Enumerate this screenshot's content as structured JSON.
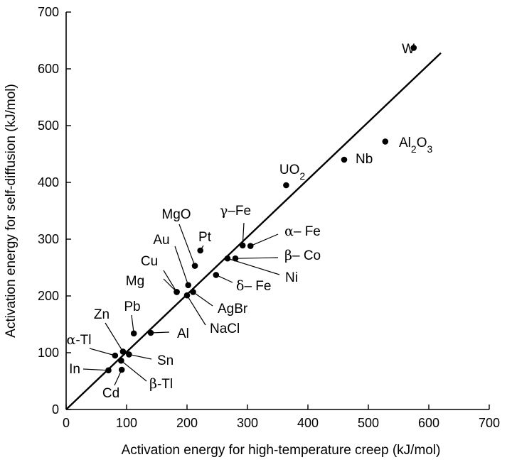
{
  "chart_data": {
    "type": "scatter",
    "title": "",
    "xlabel": "Activation energy for high-temperature creep (kJ/mol)",
    "ylabel": "Activation energy for self-diffusion (kJ/mol)",
    "xlim": [
      0,
      700
    ],
    "ylim": [
      0,
      700
    ],
    "xticks": [
      0,
      100,
      200,
      300,
      400,
      500,
      600,
      700
    ],
    "yticks": [
      0,
      100,
      200,
      300,
      400,
      500,
      600,
      700
    ],
    "grid": false,
    "fit_line": {
      "x": [
        0,
        620
      ],
      "y": [
        0,
        628
      ]
    },
    "points": [
      {
        "label": "W",
        "x": 575,
        "y": 637
      },
      {
        "label": "Al₂O₃",
        "x": 528,
        "y": 472
      },
      {
        "label": "Nb",
        "x": 460,
        "y": 440
      },
      {
        "label": "UO₂",
        "x": 364,
        "y": 395
      },
      {
        "label": "γ–Fe",
        "x": 292,
        "y": 289
      },
      {
        "label": "α– Fe",
        "x": 305,
        "y": 288
      },
      {
        "label": "β– Co",
        "x": 280,
        "y": 266
      },
      {
        "label": "Ni",
        "x": 267,
        "y": 266
      },
      {
        "label": "δ– Fe",
        "x": 248,
        "y": 237
      },
      {
        "label": "Pt",
        "x": 222,
        "y": 280
      },
      {
        "label": "MgO",
        "x": 213,
        "y": 253
      },
      {
        "label": "Au",
        "x": 202,
        "y": 219
      },
      {
        "label": "AgBr",
        "x": 210,
        "y": 207
      },
      {
        "label": "NaCl",
        "x": 200,
        "y": 201
      },
      {
        "label": "Cu",
        "x": 183,
        "y": 207
      },
      {
        "label": "Mg",
        "x": 183,
        "y": 207
      },
      {
        "label": "Al",
        "x": 140,
        "y": 135
      },
      {
        "label": "Pb",
        "x": 112,
        "y": 134
      },
      {
        "label": "Zn",
        "x": 94,
        "y": 102
      },
      {
        "label": "Sn",
        "x": 104,
        "y": 97
      },
      {
        "label": "α-Tl",
        "x": 81,
        "y": 95
      },
      {
        "label": "β-Tl",
        "x": 91,
        "y": 86
      },
      {
        "label": "In",
        "x": 70,
        "y": 69
      },
      {
        "label": "Cd",
        "x": 92,
        "y": 70
      }
    ]
  }
}
